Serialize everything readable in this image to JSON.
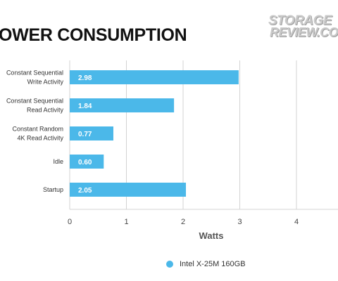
{
  "page_title": "OWER CONSUMPTION",
  "logo": {
    "line1": "STORAGE",
    "line2": "REVIEW.COM"
  },
  "colors": {
    "bar": "#4bb8e9",
    "grid": "#d3d3d3",
    "text": "#333333"
  },
  "chart_data": {
    "type": "bar",
    "orientation": "horizontal",
    "categories": [
      [
        "Constant Sequential",
        "Write Activity"
      ],
      [
        "Constant Sequential",
        "Read Activity"
      ],
      [
        "Constant Random",
        "4K Read Activity"
      ],
      [
        "Idle"
      ],
      [
        "Startup"
      ]
    ],
    "series": [
      {
        "name": "Intel X-25M 160GB",
        "values": [
          2.98,
          1.84,
          0.77,
          0.6,
          2.05
        ]
      }
    ],
    "data_labels": [
      "2.98",
      "1.84",
      "0.77",
      "0.60",
      "2.05"
    ],
    "xlabel": "Watts",
    "xticks": [
      0,
      1,
      2,
      3,
      4
    ],
    "xlim": [
      0,
      4.8
    ],
    "grid": true,
    "legend_position": "bottom"
  }
}
